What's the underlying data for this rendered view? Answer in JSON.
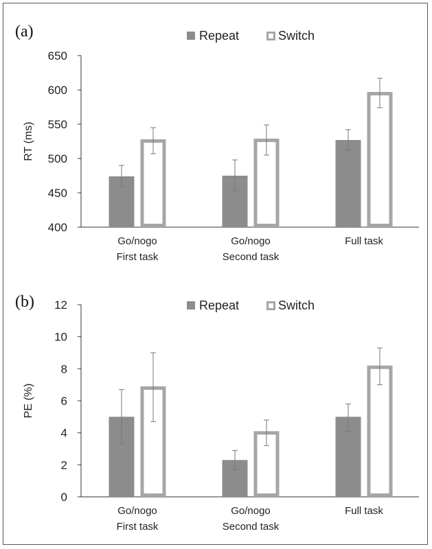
{
  "colors": {
    "repeat": "#8c8c8c",
    "switch_stroke": "#a6a6a6",
    "axis": "#333333",
    "error_bar": "#777777",
    "text": "#222222"
  },
  "chart_data": [
    {
      "panel": "(a)",
      "type": "bar",
      "ylabel": "RT (ms)",
      "ylim": [
        400,
        650
      ],
      "yticks": [
        "400",
        "450",
        "500",
        "550",
        "600",
        "650"
      ],
      "categories": [
        [
          "Go/nogo",
          "First task"
        ],
        [
          "Go/nogo",
          "Second task"
        ],
        [
          "Full task"
        ]
      ],
      "legend": {
        "placement": "top-center",
        "entries": [
          "Repeat",
          "Switch"
        ]
      },
      "grid": false,
      "series": [
        {
          "name": "Repeat",
          "style": "filled",
          "values": [
            474,
            475,
            527
          ],
          "err_low": [
            459,
            453,
            512
          ],
          "err_high": [
            490,
            498,
            542
          ]
        },
        {
          "name": "Switch",
          "style": "outline",
          "values": [
            528,
            529,
            597
          ],
          "err_low": [
            507,
            505,
            574
          ],
          "err_high": [
            545,
            549,
            617
          ]
        }
      ]
    },
    {
      "panel": "(b)",
      "type": "bar",
      "ylabel": "PE (%)",
      "ylim": [
        0,
        12
      ],
      "yticks": [
        "0",
        "2",
        "4",
        "6",
        "8",
        "10",
        "12"
      ],
      "categories": [
        [
          "Go/nogo",
          "First task"
        ],
        [
          "Go/nogo",
          "Second task"
        ],
        [
          "Full task"
        ]
      ],
      "legend": {
        "placement": "top-center",
        "entries": [
          "Repeat",
          "Switch"
        ]
      },
      "grid": false,
      "series": [
        {
          "name": "Repeat",
          "style": "filled",
          "values": [
            5.0,
            2.3,
            5.0
          ],
          "err_low": [
            3.3,
            1.7,
            4.1
          ],
          "err_high": [
            6.7,
            2.9,
            5.8
          ]
        },
        {
          "name": "Switch",
          "style": "outline",
          "values": [
            6.9,
            4.1,
            8.2
          ],
          "err_low": [
            4.7,
            3.2,
            7.0
          ],
          "err_high": [
            9.0,
            4.8,
            9.3
          ]
        }
      ]
    }
  ]
}
